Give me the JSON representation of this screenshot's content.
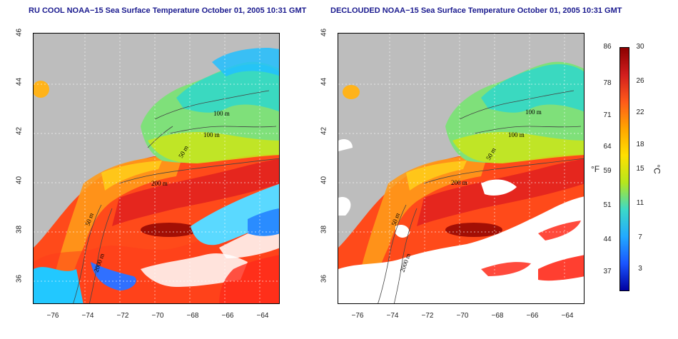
{
  "left_panel": {
    "title": "RU COOL NOAA−15 Sea Surface Temperature October 01, 2005 10:31 GMT"
  },
  "right_panel": {
    "title": "DECLOUDED NOAA−15 Sea Surface Temperature October 01, 2005 10:31 GMT"
  },
  "axes": {
    "lat_ticks": [
      "46",
      "44",
      "42",
      "40",
      "38",
      "36"
    ],
    "lon_ticks": [
      "−76",
      "−74",
      "−72",
      "−70",
      "−68",
      "−66",
      "−64"
    ]
  },
  "isobath_labels": [
    "100 m",
    "100 m",
    "50 m",
    "200 m",
    "50 m",
    "2000 m"
  ],
  "colorbar": {
    "fahrenheit_ticks": [
      "86",
      "78",
      "71",
      "64",
      "59",
      "51",
      "44",
      "37"
    ],
    "celsius_ticks": [
      "30",
      "26",
      "22",
      "18",
      "15",
      "11",
      "7",
      "3"
    ],
    "fahrenheit_unit": "°F",
    "celsius_unit": "°C",
    "colors": [
      "#8b0000",
      "#d21e1e",
      "#ff5a1a",
      "#ffa500",
      "#ffe000",
      "#b5e61d",
      "#3cd9c8",
      "#22aaff",
      "#1a55ff",
      "#0000a0"
    ]
  },
  "colors": {
    "land": "#bdbdbd",
    "title": "#1b1b8f",
    "cloud_mask": "#ffffff"
  }
}
